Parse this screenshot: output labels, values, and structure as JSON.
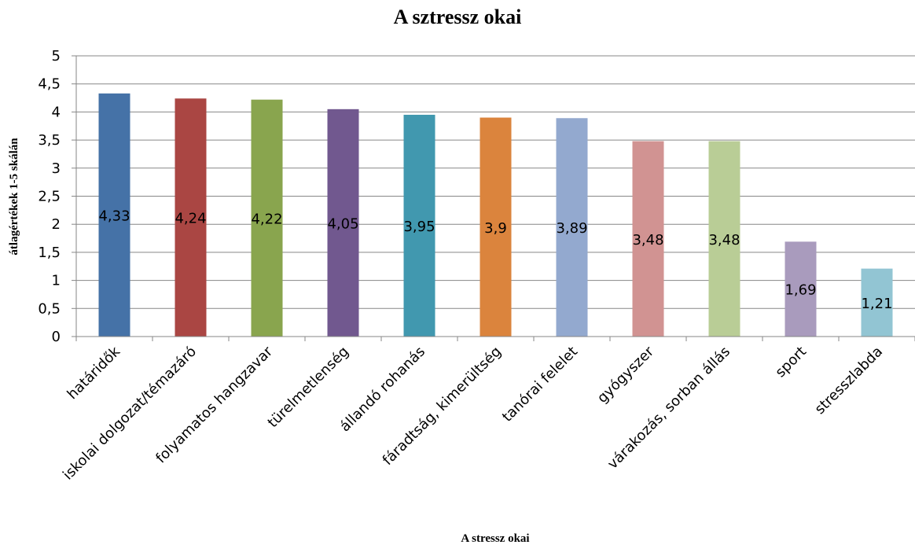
{
  "chart_data": {
    "type": "bar",
    "title": "A sztressz okai",
    "xlabel": "A stressz okai",
    "ylabel": "átlagértékek 1-5 skálán",
    "ylim": [
      0,
      5
    ],
    "y_ticks": [
      "0",
      "0,5",
      "1",
      "1,5",
      "2",
      "2,5",
      "3",
      "3,5",
      "4",
      "4,5",
      "5"
    ],
    "y_tick_values": [
      0,
      0.5,
      1,
      1.5,
      2,
      2.5,
      3,
      3.5,
      4,
      4.5,
      5
    ],
    "grid": true,
    "legend": "none",
    "categories": [
      "határidők",
      "iskolai dolgozat/témazáró",
      "folyamatos hangzavar",
      "türelmetlenség",
      "állandó rohanás",
      "fáradtság, kimerültség",
      "tanórai felelet",
      "gyógyszer",
      "várakozás, sorban állás",
      "sport",
      "stresszlabda"
    ],
    "values": [
      4.33,
      4.24,
      4.22,
      4.05,
      3.95,
      3.9,
      3.89,
      3.48,
      3.48,
      1.69,
      1.21
    ],
    "data_labels": [
      "4,33",
      "4,24",
      "4,22",
      "4,05",
      "3,95",
      "3,9",
      "3,89",
      "3,48",
      "3,48",
      "1,69",
      "1,21"
    ],
    "colors": [
      "#4572A7",
      "#AA4643",
      "#89A54E",
      "#71588F",
      "#4198AF",
      "#DB843D",
      "#93A9CF",
      "#D19392",
      "#B9CD96",
      "#A99BBD",
      "#92C5D3"
    ]
  }
}
